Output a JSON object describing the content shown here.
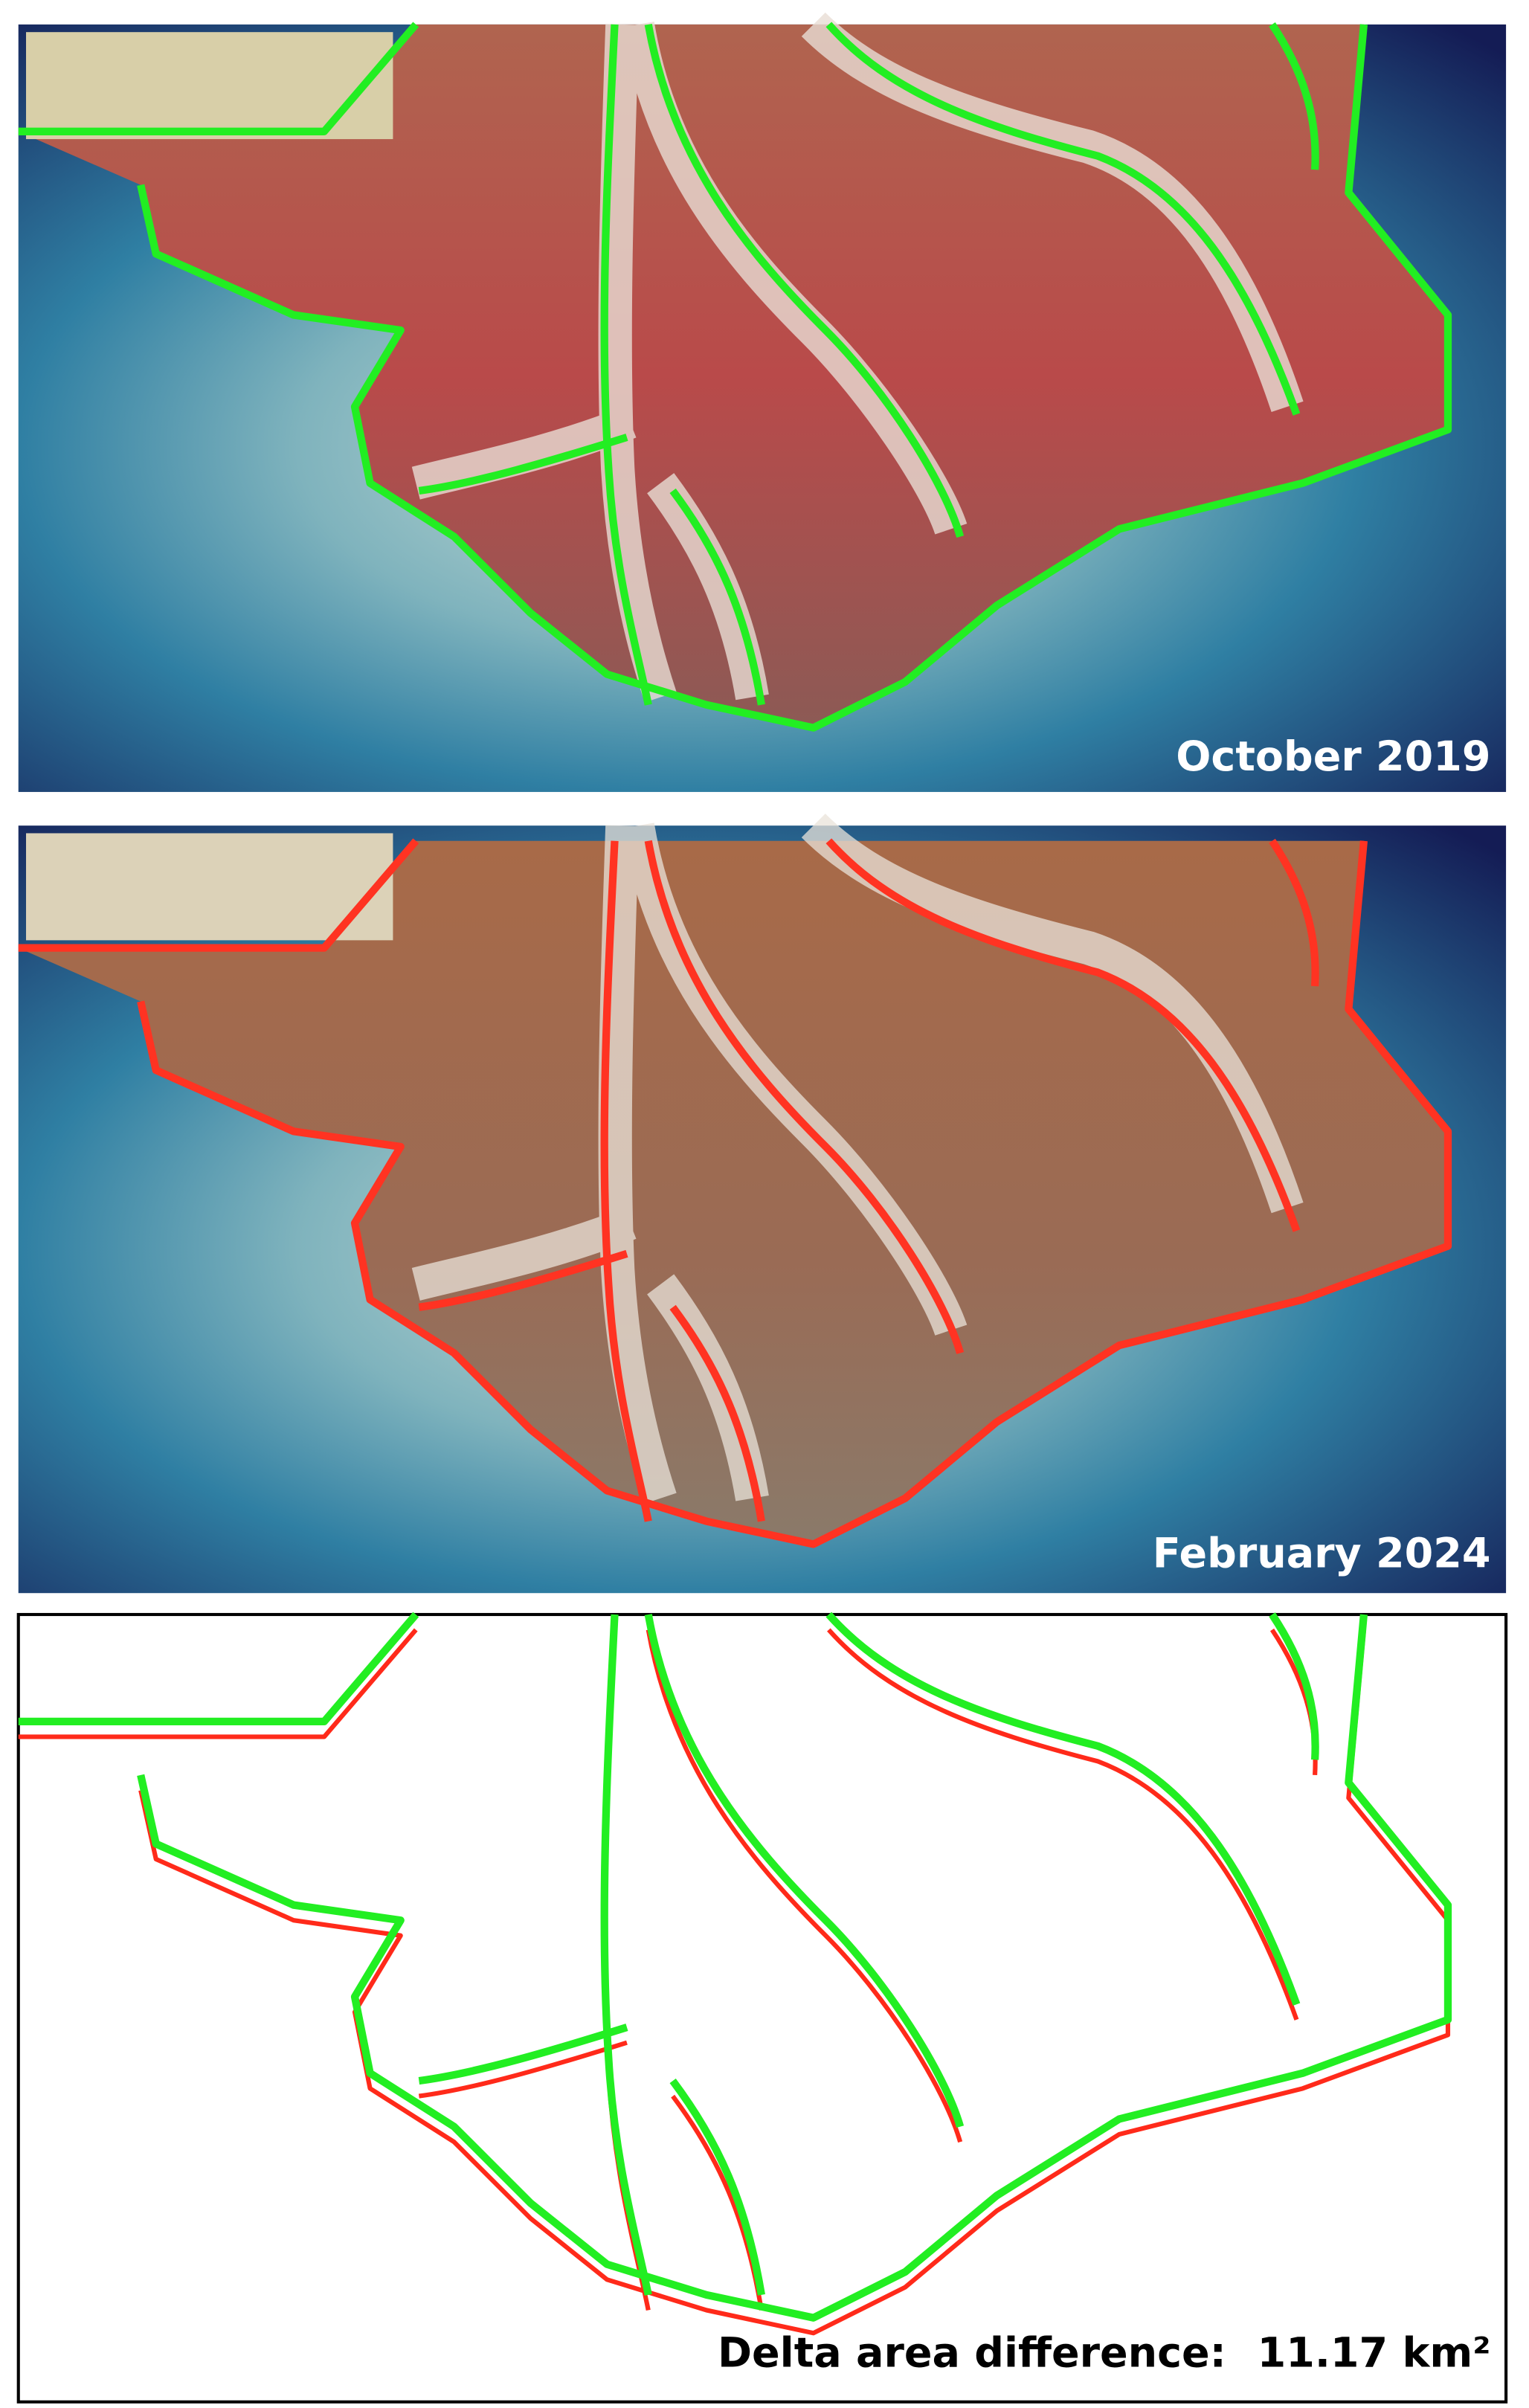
{
  "panels": [
    {
      "label": "October 2019"
    },
    {
      "label": "February 2024"
    }
  ],
  "difference": {
    "label": "Delta area difference:",
    "value": "11.17 km²"
  }
}
